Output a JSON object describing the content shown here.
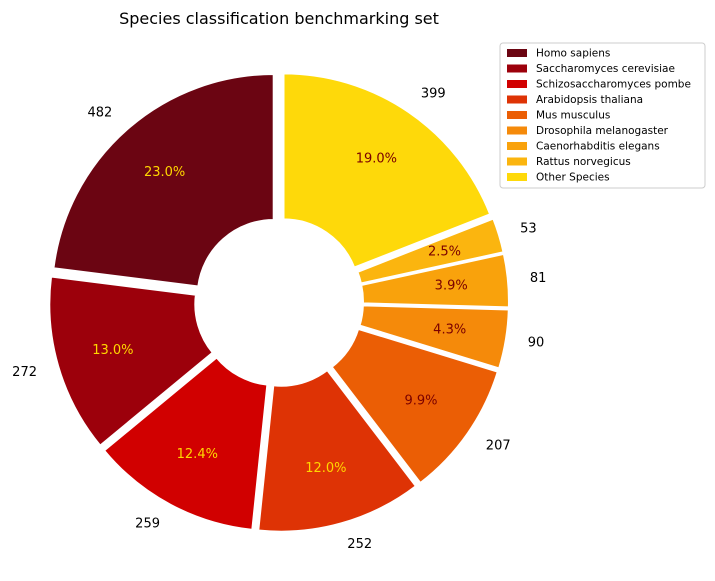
{
  "chart_data": {
    "type": "pie",
    "title": "Species classification benchmarking set",
    "donut": true,
    "legend_position": "top-right",
    "categories": [
      "Homo sapiens",
      "Saccharomyces cerevisiae",
      "Schizosaccharomyces pombe",
      "Arabidopsis thaliana",
      "Mus musculus",
      "Drosophila melanogaster",
      "Caenorhabditis elegans",
      "Rattus norvegicus",
      "Other Species"
    ],
    "values": [
      482,
      272,
      259,
      252,
      207,
      90,
      81,
      53,
      399
    ],
    "value_labels": [
      "482",
      "272",
      "259",
      "252",
      "207",
      "90",
      "81",
      "53",
      "399"
    ],
    "percent_labels": [
      "23.0%",
      "13.0%",
      "12.4%",
      "12.0%",
      "9.9%",
      "4.3%",
      "3.9%",
      "2.5%",
      "19.0%"
    ],
    "colors": [
      "#6b0512",
      "#9c000b",
      "#d10000",
      "#de3305",
      "#eb5e05",
      "#f58a0a",
      "#f9a20c",
      "#fbb50f",
      "#fed90a"
    ],
    "percent_label_colors": [
      "#ffd700",
      "#ffd700",
      "#ffd700",
      "#ffd700",
      "#7a0000",
      "#7a0000",
      "#7a0000",
      "#7a0000",
      "#7a0000"
    ]
  }
}
